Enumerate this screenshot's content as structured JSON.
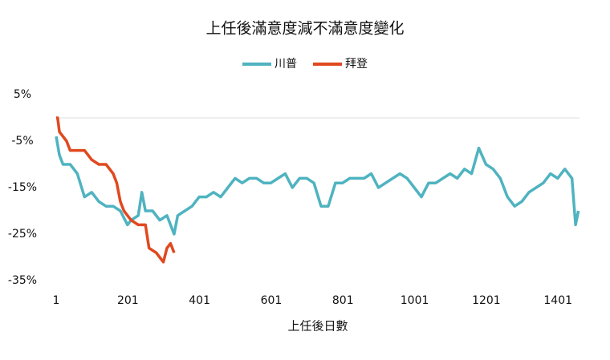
{
  "chart_data": {
    "type": "line",
    "title": "上任後滿意度減不滿意度變化",
    "x_label": "上任後日數",
    "xlim": [
      1,
      1461
    ],
    "xticks": [
      1,
      201,
      401,
      601,
      801,
      1001,
      1201,
      1401
    ],
    "ylim": [
      -35,
      5
    ],
    "yticks": [
      {
        "value": 5,
        "label": "5%"
      },
      {
        "value": -5,
        "label": "-5%"
      },
      {
        "value": -15,
        "label": "-15%"
      },
      {
        "value": -25,
        "label": "-25%"
      },
      {
        "value": -35,
        "label": "-35%"
      }
    ],
    "legend": "top",
    "series": [
      {
        "name": "川普",
        "color": "#4fb3c0",
        "x": [
          1,
          10,
          20,
          40,
          60,
          80,
          100,
          120,
          140,
          160,
          180,
          200,
          210,
          230,
          240,
          250,
          270,
          290,
          310,
          330,
          340,
          360,
          380,
          400,
          420,
          440,
          460,
          480,
          500,
          520,
          540,
          560,
          580,
          600,
          620,
          640,
          660,
          680,
          700,
          720,
          740,
          760,
          780,
          800,
          820,
          840,
          860,
          880,
          900,
          920,
          940,
          960,
          980,
          1000,
          1020,
          1040,
          1060,
          1080,
          1100,
          1120,
          1140,
          1160,
          1180,
          1200,
          1220,
          1240,
          1260,
          1280,
          1300,
          1320,
          1340,
          1360,
          1380,
          1400,
          1420,
          1440,
          1450,
          1458
        ],
        "values": [
          -4,
          -8,
          -10,
          -10,
          -12,
          -17,
          -16,
          -18,
          -19,
          -19,
          -20,
          -23,
          -22,
          -21,
          -16,
          -20,
          -20,
          -22,
          -21,
          -25,
          -21,
          -20,
          -19,
          -17,
          -17,
          -16,
          -17,
          -15,
          -13,
          -14,
          -13,
          -13,
          -14,
          -14,
          -13,
          -12,
          -15,
          -13,
          -13,
          -14,
          -19,
          -19,
          -14,
          -14,
          -13,
          -13,
          -13,
          -12,
          -15,
          -14,
          -13,
          -12,
          -13,
          -15,
          -17,
          -14,
          -14,
          -13,
          -12,
          -13,
          -11,
          -12,
          -6.5,
          -10,
          -11,
          -13,
          -17,
          -19,
          -18,
          -16,
          -15,
          -14,
          -12,
          -13,
          -11,
          -13,
          -23,
          -20
        ]
      },
      {
        "name": "拜登",
        "color": "#e0491f",
        "x": [
          1,
          5,
          10,
          20,
          30,
          40,
          60,
          80,
          100,
          120,
          140,
          160,
          170,
          180,
          190,
          200,
          210,
          230,
          250,
          260,
          280,
          290,
          300,
          310,
          320,
          330
        ],
        "values": [
          0,
          0,
          -3,
          -4,
          -5,
          -7,
          -7,
          -7,
          -9,
          -10,
          -10,
          -12,
          -14,
          -18,
          -20,
          -21,
          -22,
          -23,
          -23,
          -28,
          -29,
          -30,
          -31,
          -28,
          -27,
          -29
        ]
      }
    ]
  }
}
